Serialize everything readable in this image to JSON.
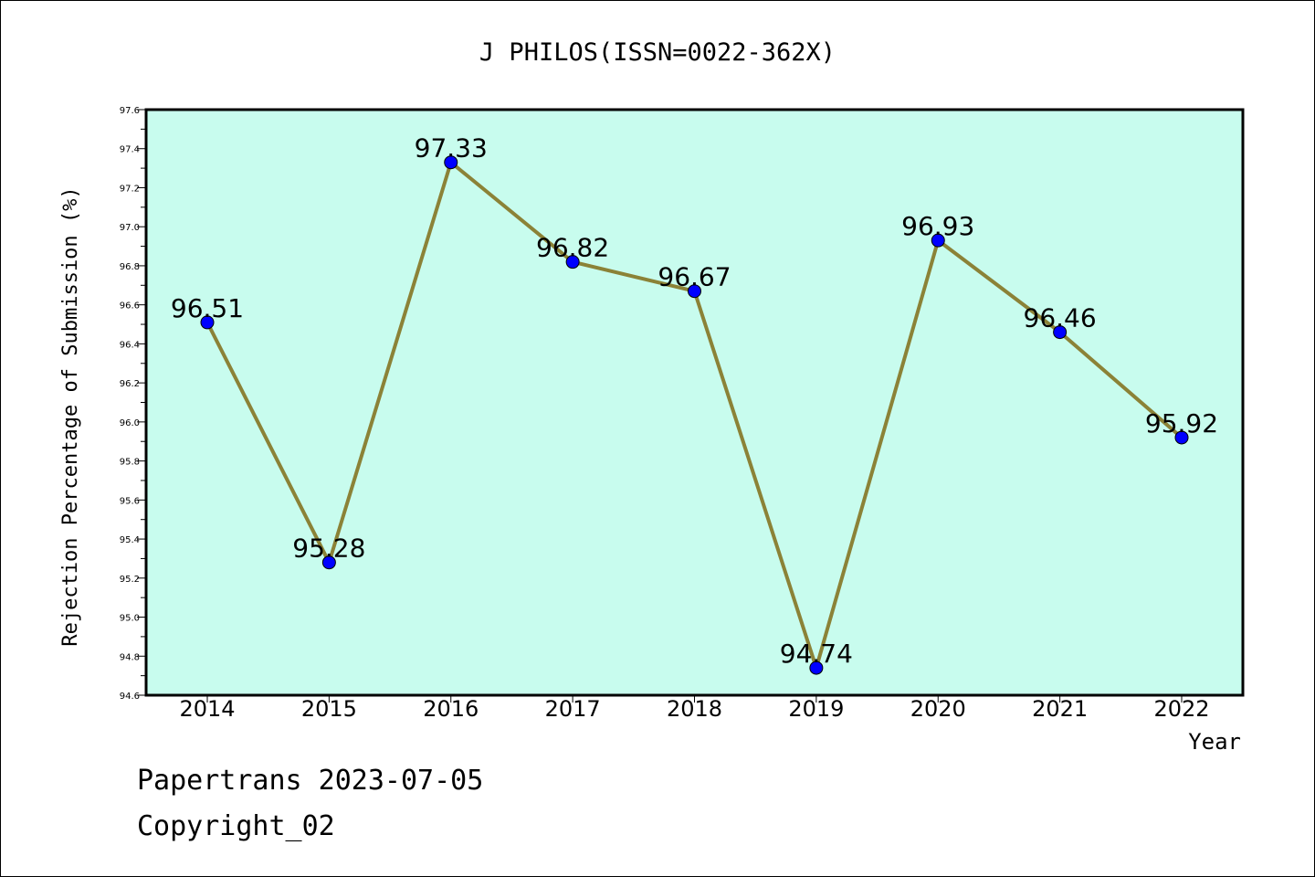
{
  "chart_data": {
    "type": "line",
    "title": "J PHILOS(ISSN=0022-362X)",
    "xlabel": "Year",
    "ylabel": "Rejection Percentage of Submission (%)",
    "categories": [
      "2014",
      "2015",
      "2016",
      "2017",
      "2018",
      "2019",
      "2020",
      "2021",
      "2022"
    ],
    "values": [
      96.51,
      95.28,
      97.33,
      96.82,
      96.67,
      94.74,
      96.93,
      96.46,
      95.92
    ],
    "value_labels": [
      "96.51",
      "95.28",
      "97.33",
      "96.82",
      "96.67",
      "94.74",
      "96.93",
      "96.46",
      "95.92"
    ],
    "ylim": [
      94.6,
      97.6
    ],
    "yticks": [
      "94.6",
      "94.8",
      "95.0",
      "95.2",
      "95.4",
      "95.6",
      "95.8",
      "96.0",
      "96.2",
      "96.4",
      "96.6",
      "96.8",
      "97.0",
      "97.2",
      "97.4",
      "97.6"
    ],
    "grid": false,
    "colors": {
      "plot_background": "#c8fcee",
      "line": "#8b8237",
      "marker": "#0000ff"
    }
  },
  "footer": {
    "line1": "Papertrans 2023-07-05",
    "line2": "Copyright_02"
  }
}
